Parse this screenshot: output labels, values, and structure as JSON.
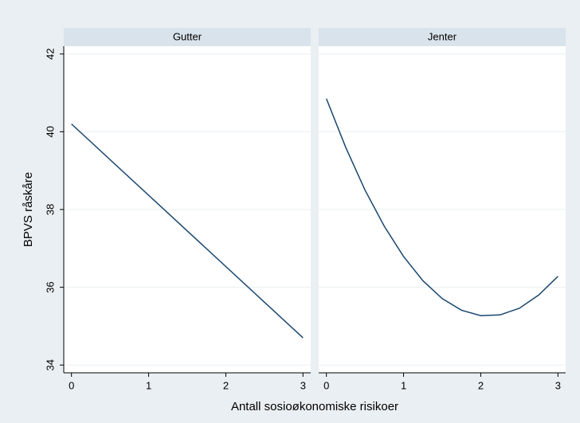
{
  "chart_data": {
    "type": "line",
    "ylabel": "BPVS råskåre",
    "xlabel": "Antall sosioøkonomiske risikoer",
    "ylim": [
      33.8,
      42.2
    ],
    "yticks": [
      34,
      36,
      38,
      40,
      42
    ],
    "xlim": [
      -0.1,
      3.1
    ],
    "xticks": [
      0,
      1,
      2,
      3
    ],
    "grid": true,
    "color": "#1a476f",
    "panels": [
      {
        "title": "Gutter",
        "x": [
          0,
          3
        ],
        "values": [
          40.2,
          34.7
        ]
      },
      {
        "title": "Jenter",
        "x": [
          0,
          0.25,
          0.5,
          0.75,
          1,
          1.25,
          1.5,
          1.75,
          2,
          2.25,
          2.5,
          2.75,
          3
        ],
        "values": [
          40.85,
          39.6,
          38.5,
          37.57,
          36.79,
          36.17,
          35.71,
          35.41,
          35.27,
          35.29,
          35.46,
          35.8,
          36.28
        ]
      }
    ]
  }
}
